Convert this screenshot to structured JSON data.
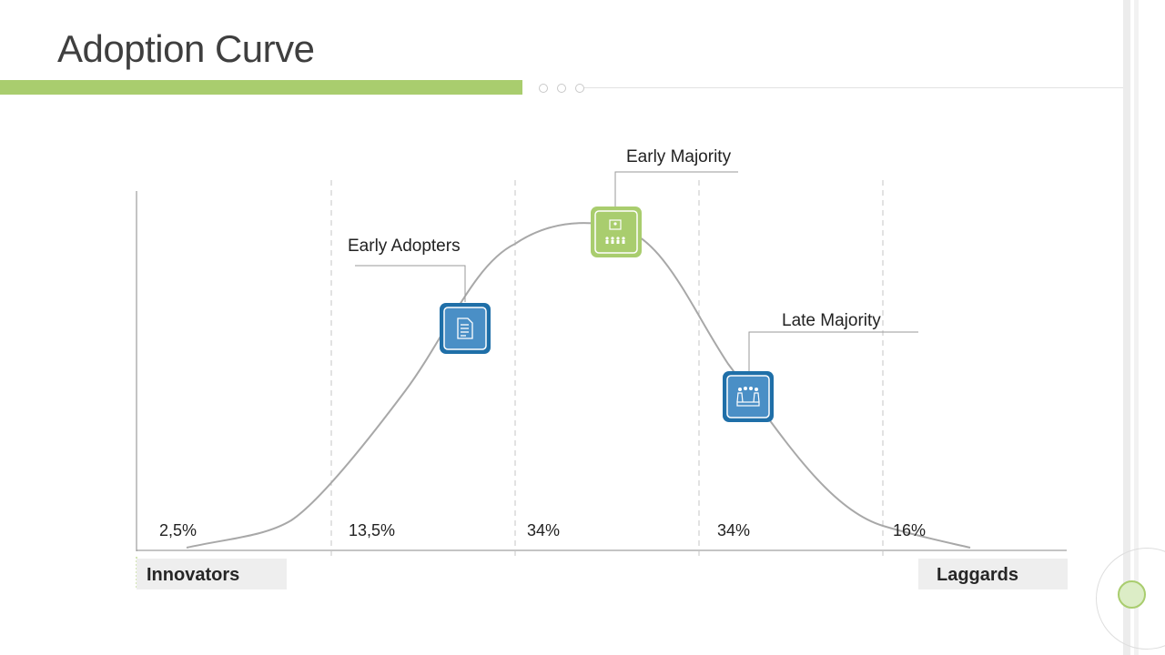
{
  "title": "Adoption Curve",
  "colors": {
    "accent": "#a9cd6e",
    "blue": "#1f6fa8",
    "blue_light": "#4a8fc6",
    "green": "#a9cd6e",
    "curve": "#a8a8a8"
  },
  "segments": [
    {
      "percent": "2,5%"
    },
    {
      "percent": "13,5%"
    },
    {
      "percent": "34%"
    },
    {
      "percent": "34%"
    },
    {
      "percent": "16%"
    }
  ],
  "callouts": [
    {
      "label": "Early Adopters",
      "icon": "document-icon",
      "color": "blue"
    },
    {
      "label": "Early Majority",
      "icon": "presentation-audience-icon",
      "color": "green"
    },
    {
      "label": "Late Majority",
      "icon": "team-meeting-icon",
      "color": "blue"
    }
  ],
  "ends": {
    "left": "Innovators",
    "right": "Laggards"
  }
}
